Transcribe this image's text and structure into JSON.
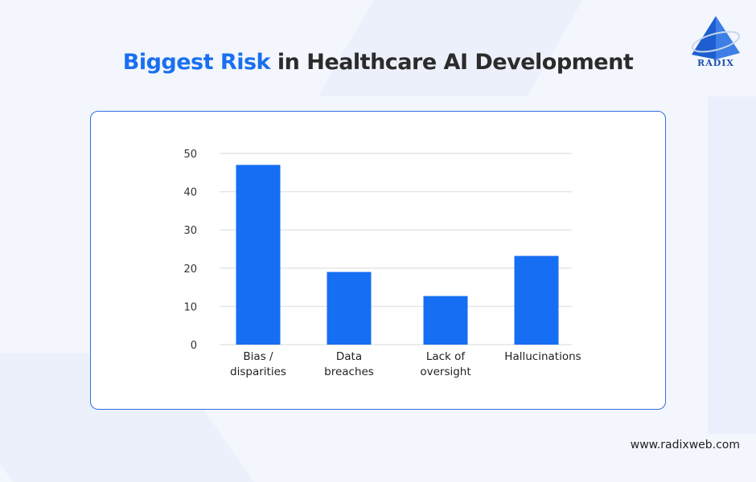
{
  "title": {
    "highlight": "Biggest Risk",
    "rest": " in Healthcare AI Development"
  },
  "logo": {
    "text": "RADIX"
  },
  "footer": {
    "url": "www.radixweb.com"
  },
  "colors": {
    "accent": "#1a6ff0",
    "bar": "#166ef2",
    "card_border": "#2f6fe0"
  },
  "chart_data": {
    "type": "bar",
    "title": "",
    "xlabel": "",
    "ylabel": "",
    "categories": [
      [
        "Bias /",
        "disparities"
      ],
      [
        "Data",
        "breaches"
      ],
      [
        "Lack of",
        "oversight"
      ],
      [
        "Hallucinations"
      ]
    ],
    "values": [
      47,
      19,
      12.7,
      23.2
    ],
    "ylim": [
      0,
      50
    ],
    "yticks": [
      "0",
      "10",
      "20",
      "30",
      "40",
      "50"
    ],
    "grid": true,
    "legend": "none"
  }
}
